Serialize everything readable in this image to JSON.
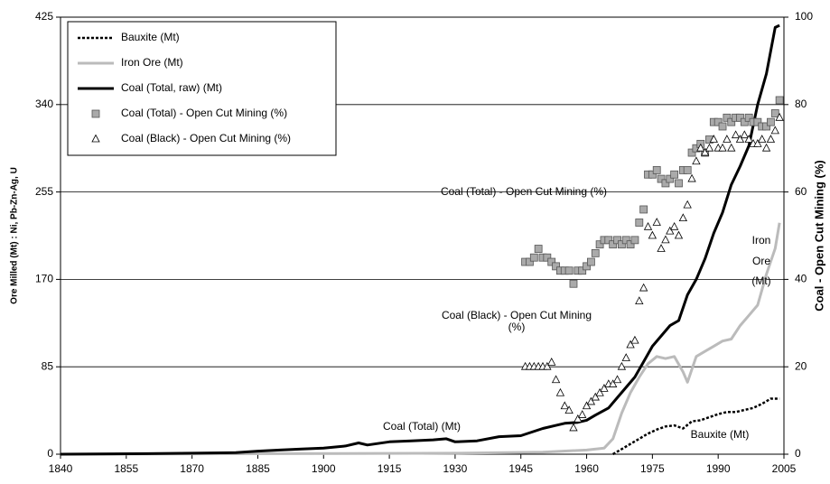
{
  "chart_data": {
    "type": "line",
    "y_label": "Ore Milled (Mt) : Ni, Pb-Zn-Ag, U",
    "y2_label": "Coal - Open Cut Mining (%)",
    "xlim": [
      1840,
      2005
    ],
    "xticks": [
      1840,
      1855,
      1870,
      1885,
      1900,
      1915,
      1930,
      1945,
      1960,
      1975,
      1990,
      2005
    ],
    "ylim": [
      0,
      425
    ],
    "yticks": [
      0,
      85,
      170,
      255,
      340,
      425
    ],
    "y2lim": [
      0,
      100
    ],
    "y2ticks": [
      0,
      20,
      40,
      60,
      80,
      100
    ],
    "grid": true,
    "legend": "upper left",
    "annotations": [
      "Coal (Total) - Open Cut Mining (%)",
      "Coal (Black) - Open Cut Mining",
      "(%)",
      "Coal (Total) (Mt)",
      "Iron",
      "Ore",
      "(Mt)",
      "Bauxite (Mt)"
    ],
    "series": [
      {
        "name": "Bauxite (Mt)",
        "type": "line",
        "style": "dotted",
        "color": "#000000",
        "x": [
          1966,
          1968,
          1970,
          1972,
          1974,
          1976,
          1978,
          1980,
          1982,
          1984,
          1986,
          1988,
          1990,
          1992,
          1994,
          1996,
          1998,
          2000,
          2002,
          2004
        ],
        "values": [
          0,
          5,
          10,
          15,
          20,
          24,
          27,
          28,
          25,
          32,
          33,
          36,
          39,
          41,
          41,
          43,
          45,
          49,
          54,
          54
        ]
      },
      {
        "name": "Iron Ore (Mt)",
        "type": "line",
        "style": "solid",
        "color": "#bbbbbb",
        "x": [
          1840,
          1930,
          1950,
          1960,
          1964,
          1966,
          1968,
          1970,
          1972,
          1974,
          1976,
          1978,
          1980,
          1982,
          1983,
          1985,
          1987,
          1989,
          1991,
          1993,
          1995,
          1997,
          1999,
          2001,
          2003,
          2004
        ],
        "values": [
          0,
          1,
          2,
          4,
          6,
          15,
          40,
          60,
          75,
          88,
          95,
          93,
          95,
          80,
          70,
          95,
          100,
          105,
          110,
          112,
          125,
          135,
          145,
          175,
          200,
          225
        ]
      },
      {
        "name": "Coal (Total, raw) (Mt)",
        "type": "line",
        "style": "thick",
        "color": "#000000",
        "x": [
          1840,
          1860,
          1870,
          1880,
          1885,
          1890,
          1895,
          1900,
          1905,
          1908,
          1910,
          1915,
          1920,
          1925,
          1928,
          1930,
          1935,
          1940,
          1945,
          1950,
          1953,
          1955,
          1958,
          1960,
          1962,
          1965,
          1967,
          1969,
          1971,
          1973,
          1975,
          1977,
          1979,
          1981,
          1983,
          1985,
          1987,
          1989,
          1991,
          1993,
          1995,
          1997,
          1999,
          2001,
          2003,
          2004
        ],
        "values": [
          0,
          0.5,
          1,
          1.5,
          3,
          4,
          5,
          6,
          8,
          11,
          9,
          12,
          13,
          14,
          15,
          12,
          13,
          17,
          18,
          25,
          28,
          30,
          31,
          33,
          38,
          45,
          55,
          65,
          75,
          90,
          105,
          115,
          125,
          130,
          155,
          170,
          190,
          215,
          235,
          262,
          280,
          300,
          340,
          370,
          415,
          417
        ]
      },
      {
        "name": "Coal (Total) - Open Cut Mining (%)",
        "type": "scatter",
        "marker": "square",
        "color": "#aaaaaa",
        "axis": "y2",
        "x": [
          1946,
          1947,
          1948,
          1949,
          1950,
          1951,
          1952,
          1953,
          1954,
          1955,
          1956,
          1957,
          1958,
          1959,
          1960,
          1961,
          1962,
          1963,
          1964,
          1965,
          1966,
          1967,
          1968,
          1969,
          1970,
          1971,
          1972,
          1973,
          1974,
          1975,
          1976,
          1977,
          1978,
          1979,
          1980,
          1981,
          1982,
          1983,
          1984,
          1985,
          1986,
          1987,
          1988,
          1989,
          1990,
          1991,
          1992,
          1993,
          1994,
          1995,
          1996,
          1997,
          1998,
          1999,
          2000,
          2001,
          2002,
          2003,
          2004
        ],
        "values": [
          44,
          44,
          45,
          47,
          45,
          45,
          44,
          43,
          42,
          42,
          42,
          39,
          42,
          42,
          43,
          44,
          46,
          48,
          49,
          49,
          48,
          49,
          48,
          49,
          48,
          49,
          53,
          56,
          64,
          64,
          65,
          63,
          62,
          63,
          64,
          62,
          65,
          65,
          69,
          70,
          71,
          69,
          72,
          76,
          76,
          75,
          77,
          76,
          77,
          77,
          76,
          77,
          76,
          76,
          75,
          75,
          76,
          78,
          81
        ]
      },
      {
        "name": "Coal (Black) - Open Cut Mining (%)",
        "type": "scatter",
        "marker": "triangle",
        "color": "#ffffff",
        "axis": "y2",
        "x": [
          1946,
          1947,
          1948,
          1949,
          1950,
          1951,
          1952,
          1953,
          1954,
          1955,
          1956,
          1957,
          1958,
          1959,
          1960,
          1961,
          1962,
          1963,
          1964,
          1965,
          1966,
          1967,
          1968,
          1969,
          1970,
          1971,
          1972,
          1973,
          1974,
          1975,
          1976,
          1977,
          1978,
          1979,
          1980,
          1981,
          1982,
          1983,
          1984,
          1985,
          1986,
          1987,
          1988,
          1989,
          1990,
          1991,
          1992,
          1993,
          1994,
          1995,
          1996,
          1997,
          1998,
          1999,
          2000,
          2001,
          2002,
          2003,
          2004
        ],
        "values": [
          20,
          20,
          20,
          20,
          20,
          20,
          21,
          17,
          14,
          11,
          10,
          6,
          8,
          9,
          11,
          12,
          13,
          14,
          15,
          16,
          16,
          17,
          20,
          22,
          25,
          26,
          35,
          38,
          52,
          50,
          53,
          47,
          49,
          51,
          52,
          50,
          54,
          57,
          63,
          67,
          70,
          69,
          70,
          72,
          70,
          70,
          72,
          70,
          73,
          72,
          73,
          72,
          71,
          71,
          72,
          70,
          72,
          74,
          77
        ]
      }
    ]
  }
}
